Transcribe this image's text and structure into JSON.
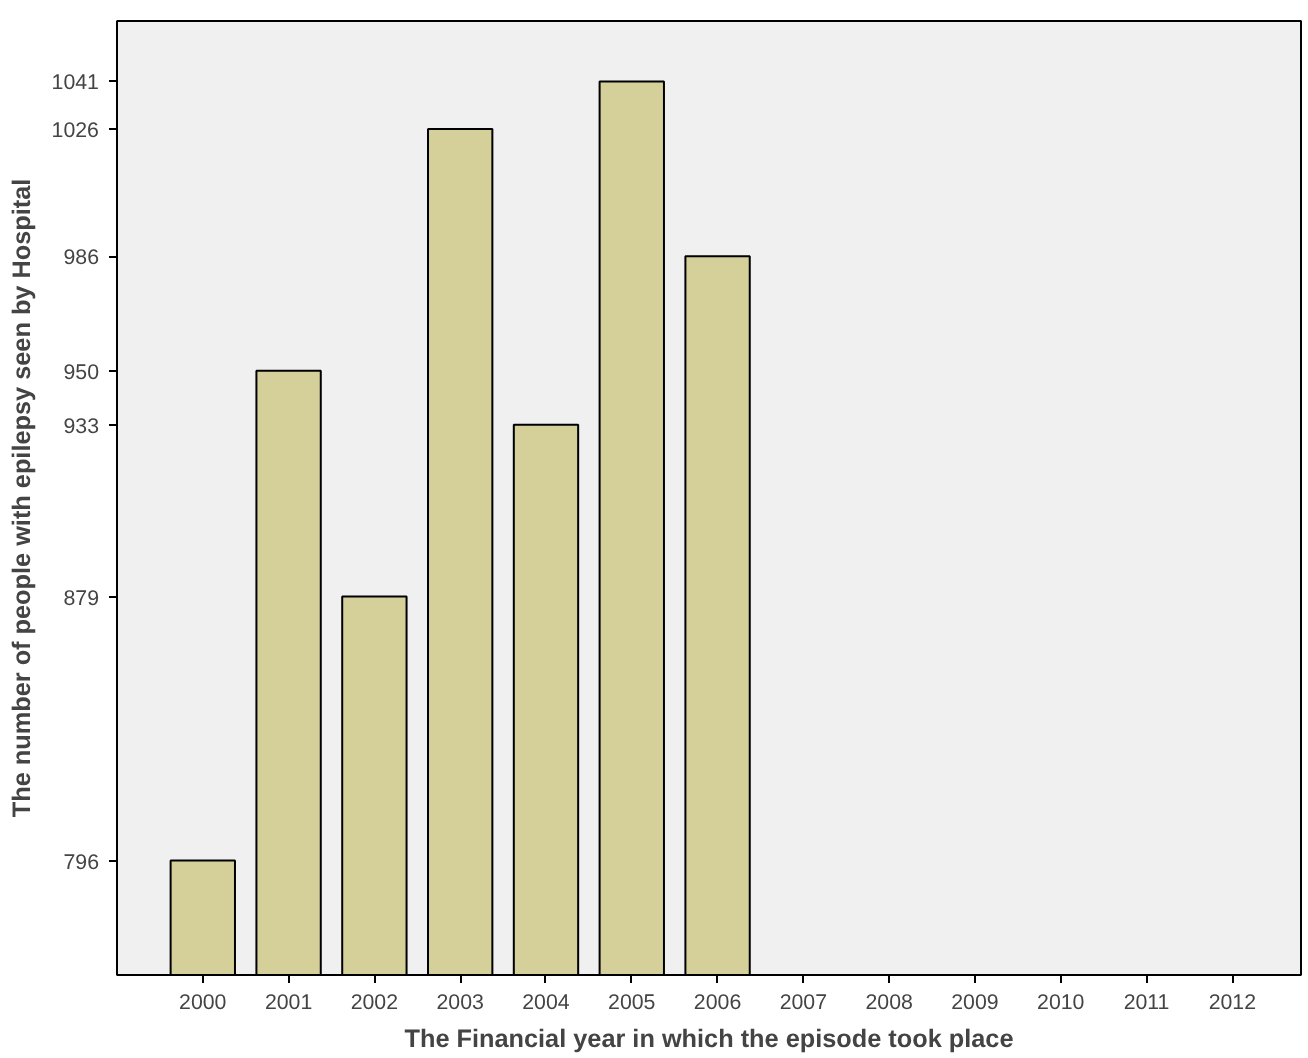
{
  "chart_data": {
    "type": "bar",
    "xlabel": "The Financial year in which the episode took place",
    "ylabel": "The number of people with epilepsy seen by Hospital",
    "categories": [
      "2000",
      "2001",
      "2002",
      "2003",
      "2004",
      "2005",
      "2006",
      "2007",
      "2008",
      "2009",
      "2010",
      "2011",
      "2012"
    ],
    "values": [
      796,
      950,
      879,
      1026,
      933,
      1041,
      986,
      null,
      null,
      null,
      null,
      null,
      null
    ],
    "color": "#d5d09a",
    "ylim": [
      760,
      1060
    ],
    "yticks": [
      796,
      879,
      933,
      950,
      986,
      1026,
      1041
    ],
    "grid": false
  }
}
